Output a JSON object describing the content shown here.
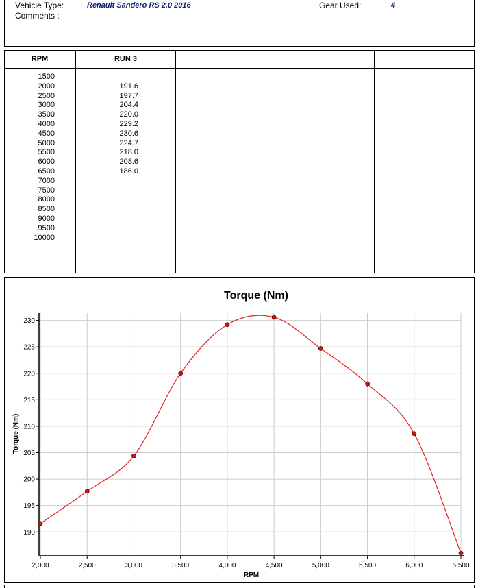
{
  "header": {
    "vehicle_type_label": "Vehicle Type:",
    "vehicle_type_value": "Renault Sandero RS 2.0 2016",
    "gear_used_label": "Gear Used:",
    "gear_used_value": "4",
    "comments_label": "Comments :"
  },
  "table": {
    "headers": [
      "RPM",
      "RUN 3",
      "",
      "",
      ""
    ],
    "rpm": [
      "1500",
      "2000",
      "2500",
      "3000",
      "3500",
      "4000",
      "4500",
      "5000",
      "5500",
      "6000",
      "6500",
      "7000",
      "7500",
      "8000",
      "8500",
      "9000",
      "9500",
      "10000"
    ],
    "run3": [
      "",
      "191.6",
      "197.7",
      "204.4",
      "220.0",
      "229.2",
      "230.6",
      "224.7",
      "218.0",
      "208.6",
      "186.0",
      "",
      "",
      "",
      "",
      "",
      "",
      ""
    ]
  },
  "chart_data": {
    "type": "line",
    "title": "Torque (Nm)",
    "xlabel": "RPM",
    "ylabel": "Torque (Nm)",
    "x": [
      2000,
      2500,
      3000,
      3500,
      4000,
      4500,
      5000,
      5500,
      6000,
      6500
    ],
    "series": [
      {
        "values": [
          191.6,
          197.7,
          204.4,
          220.0,
          229.2,
          230.6,
          224.7,
          218.0,
          208.6,
          186.0
        ]
      }
    ],
    "xlim": [
      2000,
      6500
    ],
    "ylim": [
      185.5,
      231.5
    ],
    "xticks": [
      2000,
      2500,
      3000,
      3500,
      4000,
      4500,
      5000,
      5500,
      6000,
      6500
    ],
    "xtick_labels": [
      "2,000",
      "2,500",
      "3,000",
      "3,500",
      "4,000",
      "4,500",
      "5,000",
      "5,500",
      "6,000",
      "6,500"
    ],
    "yticks": [
      190,
      195,
      200,
      205,
      210,
      215,
      220,
      225,
      230
    ],
    "ytick_labels": [
      "190",
      "195",
      "200",
      "205",
      "210",
      "215",
      "220",
      "225",
      "230"
    ],
    "grid": true,
    "colors": {
      "line": "#e02020",
      "marker_fill": "#c81818",
      "marker_edge": "#5a0000",
      "grid": "#cccccc",
      "baseline": "#4b2a7a"
    }
  }
}
